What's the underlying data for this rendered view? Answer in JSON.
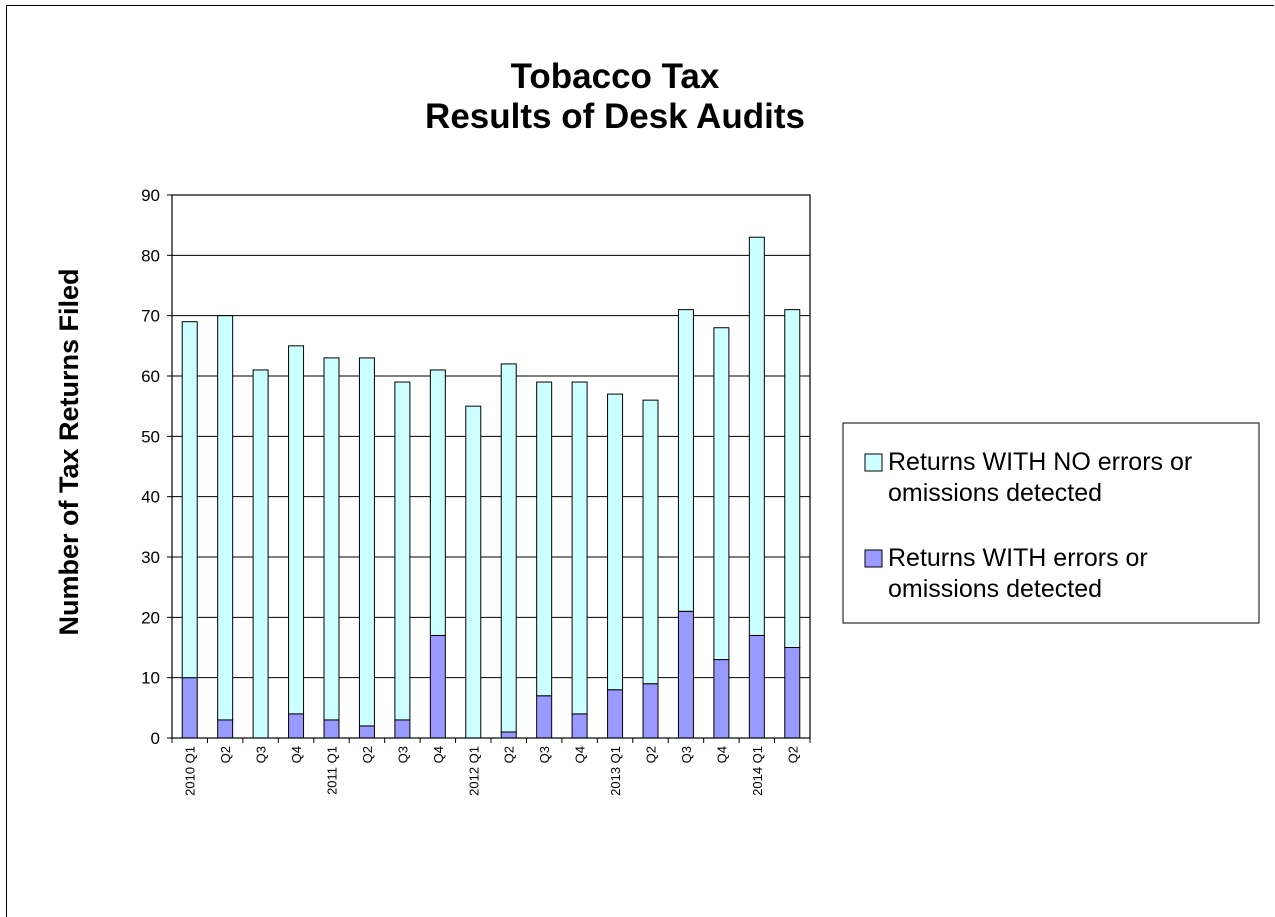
{
  "chart_data": {
    "type": "bar",
    "stacked": true,
    "title": "Tobacco Tax",
    "subtitle": "Results of Desk Audits",
    "xlabel": "",
    "ylabel": "Number of Tax Returns Filed",
    "ylim": [
      0,
      90
    ],
    "yticks": [
      0,
      10,
      20,
      30,
      40,
      50,
      60,
      70,
      80,
      90
    ],
    "grid": true,
    "legend_position": "right",
    "categories": [
      "2010  Q1",
      "Q2",
      "Q3",
      "Q4",
      "2011  Q1",
      "Q2",
      "Q3",
      "Q4",
      "2012  Q1",
      "Q2",
      "Q3",
      "Q4",
      "2013  Q1",
      "Q2",
      "Q3",
      "Q4",
      "2014  Q1",
      "Q2"
    ],
    "series": [
      {
        "name": "Returns WITH errors or omissions detected",
        "color": "#9999ff",
        "values": [
          10,
          3,
          0,
          4,
          3,
          2,
          3,
          17,
          0,
          1,
          7,
          4,
          8,
          9,
          21,
          13,
          17,
          15
        ]
      },
      {
        "name": "Returns WITH NO errors or omissions detected",
        "color": "#ccffff",
        "values": [
          59,
          67,
          61,
          61,
          60,
          61,
          56,
          44,
          55,
          61,
          52,
          55,
          49,
          47,
          50,
          55,
          66,
          56
        ]
      }
    ],
    "legend": [
      {
        "line1": "Returns WITH NO errors or",
        "line2": "omissions detected",
        "color": "#ccffff"
      },
      {
        "line1": "Returns WITH errors or",
        "line2": "omissions detected",
        "color": "#9999ff"
      }
    ]
  }
}
